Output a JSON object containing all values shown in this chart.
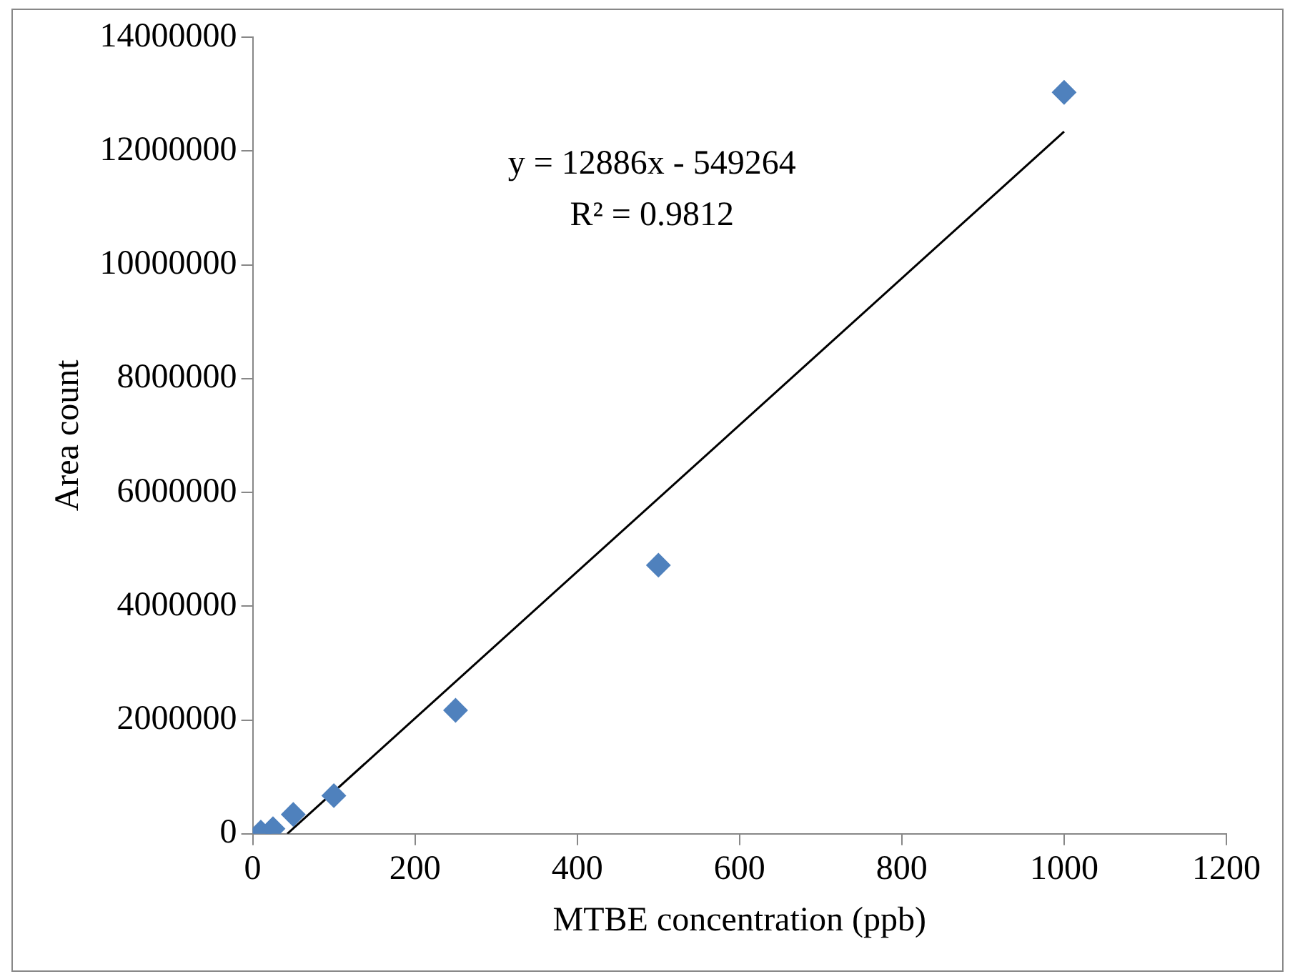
{
  "chart_data": {
    "type": "scatter",
    "xlabel": "MTBE concentration (ppb)",
    "ylabel": "Area count",
    "x": [
      10,
      25,
      50,
      100,
      250,
      500,
      1000
    ],
    "series": [
      {
        "type": "scatter",
        "color": "#4f81bd",
        "marker": "diamond",
        "values": [
          30000,
          90000,
          340000,
          670000,
          2170000,
          4720000,
          13030000
        ]
      },
      {
        "type": "line",
        "color": "#000000",
        "marker": "none",
        "x": [
          42.6,
          1000
        ],
        "values": [
          0,
          12340000
        ]
      }
    ],
    "annotations": [
      "y = 12886x - 549264",
      "R² = 0.9812"
    ],
    "xlim": [
      0,
      1200
    ],
    "xticks": [
      0,
      200,
      400,
      600,
      800,
      1000,
      1200
    ],
    "ylim": [
      0,
      14000000
    ],
    "yticks": [
      0,
      2000000,
      4000000,
      6000000,
      8000000,
      10000000,
      12000000,
      14000000
    ],
    "grid": false,
    "legend": false
  }
}
